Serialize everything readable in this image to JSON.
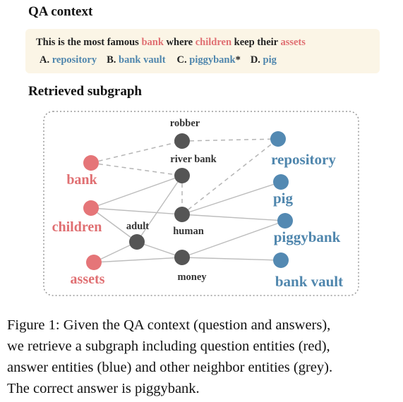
{
  "qa_heading": "QA context",
  "question": {
    "p1": "This is the most famous ",
    "w1": "bank",
    "p2": " where ",
    "w2": "children",
    "p3": " keep their ",
    "w3": "assets"
  },
  "answers": [
    {
      "letter": "A.",
      "text": "repository",
      "mark": ""
    },
    {
      "letter": "B.",
      "text": "bank vault",
      "mark": ""
    },
    {
      "letter": "C.",
      "text": "piggybank",
      "mark": "*"
    },
    {
      "letter": "D.",
      "text": "pig",
      "mark": ""
    }
  ],
  "subgraph_heading": "Retrieved subgraph",
  "graph": {
    "question_nodes": [
      "bank",
      "children",
      "assets"
    ],
    "neighbor_nodes": [
      "robber",
      "river bank",
      "human",
      "adult",
      "money"
    ],
    "answer_nodes": [
      "repository",
      "pig",
      "piggybank",
      "bank vault"
    ]
  },
  "colors": {
    "question": "#e57578",
    "answer": "#5389b2",
    "neighbor": "#555555",
    "box": "#fbf5e6"
  },
  "caption": [
    "Figure 1: Given the QA context (question and answers),",
    "we retrieve a subgraph including question entities (red),",
    "answer entities (blue) and other neighbor entities (grey).",
    "The correct answer is piggybank."
  ]
}
